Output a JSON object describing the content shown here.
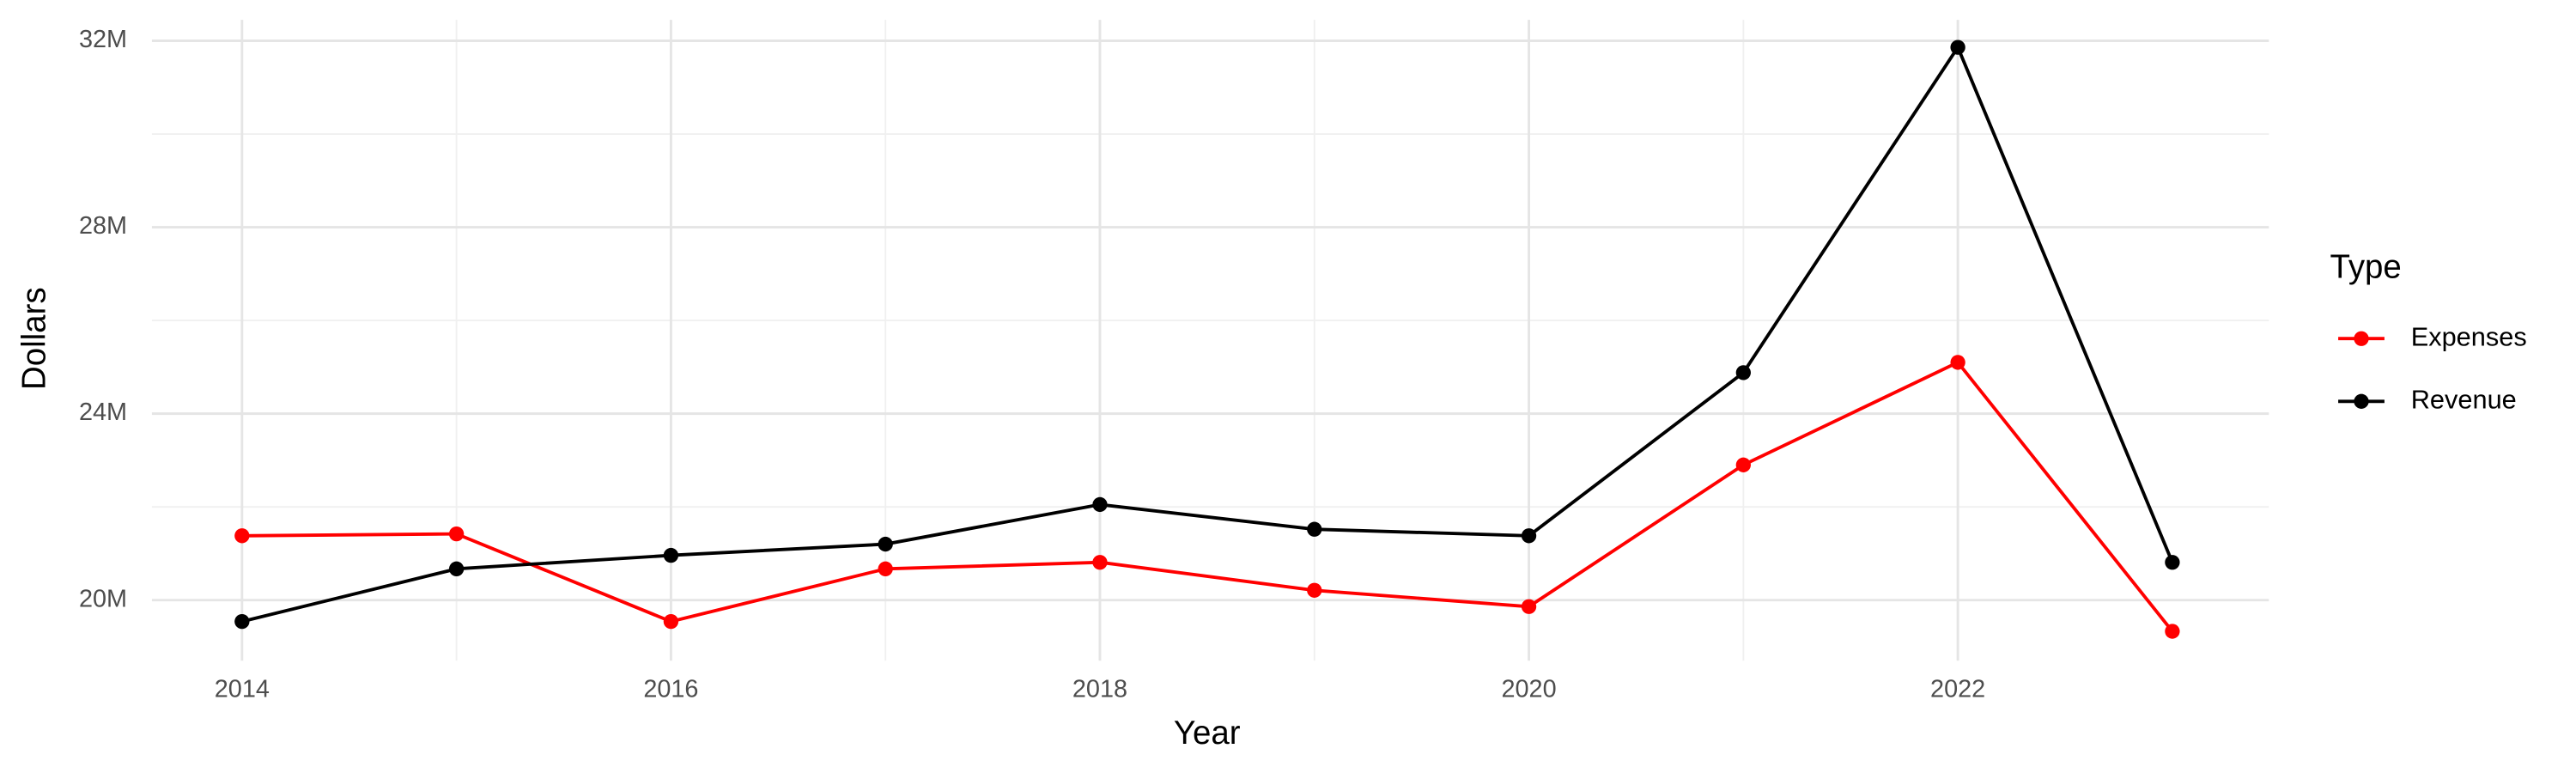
{
  "chart_data": {
    "type": "line",
    "x_label": "Year",
    "y_label": "Dollars",
    "legend_title": "Type",
    "x": [
      2014,
      2015,
      2016,
      2017,
      2018,
      2019,
      2020,
      2021,
      2022,
      2023
    ],
    "series": [
      {
        "name": "Expenses",
        "color": "#ff0000",
        "values": [
          21380000,
          21420000,
          19540000,
          20670000,
          20810000,
          20210000,
          19860000,
          22900000,
          25100000,
          19330000
        ]
      },
      {
        "name": "Revenue",
        "color": "#000000",
        "values": [
          19540000,
          20670000,
          20960000,
          21200000,
          22050000,
          21520000,
          21380000,
          24880000,
          31860000,
          20810000
        ]
      }
    ],
    "xlim": [
      2013.58,
      2023.45
    ],
    "xticks": [
      2014,
      2016,
      2018,
      2020,
      2022
    ],
    "ylim": [
      18700000,
      32450000
    ],
    "yticks": [
      {
        "value": 20000000,
        "label": "20M"
      },
      {
        "value": 24000000,
        "label": "24M"
      },
      {
        "value": 28000000,
        "label": "28M"
      },
      {
        "value": 32000000,
        "label": "32M"
      }
    ],
    "grid": true,
    "legend": "right"
  }
}
